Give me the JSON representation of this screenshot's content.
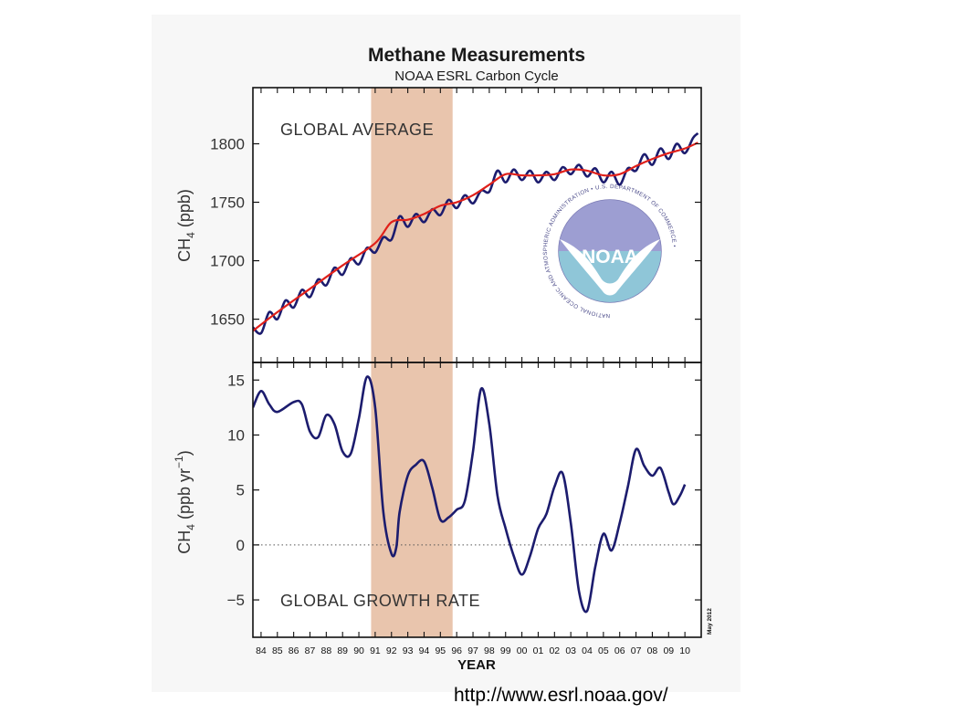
{
  "slide": {
    "source_url": "http://www.esrl.noaa.gov/"
  },
  "figure": {
    "title": "Methane Measurements",
    "subtitle": "NOAA ESRL Carbon Cycle",
    "date_stamp": "May 2012"
  },
  "logo": {
    "wordmark": "NOAA",
    "ring_text": "NATIONAL OCEANIC AND ATMOSPHERIC ADMINISTRATION • U.S. DEPARTMENT OF COMMERCE •"
  },
  "colors": {
    "series_line": "#1c1c6e",
    "trend_line": "#e0201a",
    "highlight_band": "#e9c5ad",
    "panel_background": "#ffffff",
    "figure_background": "#f7f7f7",
    "logo_sky": "#9d9ed2",
    "logo_sea": "#8fc6d8"
  },
  "chart_data": [
    {
      "type": "line",
      "panel": "top",
      "annotation": "GLOBAL AVERAGE",
      "ylabel_main": "CH",
      "ylabel_sub": "4",
      "ylabel_rest": " (ppb)",
      "xlabel": "",
      "ylim": [
        1613,
        1848
      ],
      "xlim": [
        1983.5,
        2011.0
      ],
      "yticks": [
        1650,
        1700,
        1750,
        1800
      ],
      "ytick_labels": [
        "1650",
        "1700",
        "1750",
        "1800"
      ],
      "grid": false,
      "highlight_band": [
        1990.75,
        1995.75
      ],
      "series": [
        {
          "role": "monthly",
          "x": [
            1983.5,
            1984.0,
            1984.5,
            1985.0,
            1985.5,
            1986.0,
            1986.5,
            1987.0,
            1987.5,
            1988.0,
            1988.5,
            1989.0,
            1989.5,
            1990.0,
            1990.5,
            1991.0,
            1991.5,
            1992.0,
            1992.5,
            1993.0,
            1993.5,
            1994.0,
            1994.5,
            1995.0,
            1995.5,
            1996.0,
            1996.5,
            1997.0,
            1997.5,
            1998.0,
            1998.5,
            1999.0,
            1999.5,
            2000.0,
            2000.5,
            2001.0,
            2001.5,
            2002.0,
            2002.5,
            2003.0,
            2003.5,
            2004.0,
            2004.5,
            2005.0,
            2005.5,
            2006.0,
            2006.5,
            2007.0,
            2007.5,
            2008.0,
            2008.5,
            2009.0,
            2009.5,
            2010.0,
            2010.5,
            2010.8
          ],
          "y": [
            1643,
            1638,
            1656,
            1650,
            1666,
            1660,
            1675,
            1669,
            1684,
            1679,
            1694,
            1688,
            1702,
            1697,
            1711,
            1707,
            1720,
            1718,
            1738,
            1729,
            1740,
            1733,
            1744,
            1739,
            1752,
            1745,
            1756,
            1749,
            1760,
            1759,
            1777,
            1767,
            1778,
            1769,
            1777,
            1767,
            1776,
            1769,
            1780,
            1774,
            1782,
            1772,
            1779,
            1767,
            1776,
            1765,
            1779,
            1777,
            1791,
            1782,
            1796,
            1787,
            1800,
            1792,
            1805,
            1809
          ]
        },
        {
          "role": "trend",
          "x": [
            1983.5,
            1985.0,
            1987.0,
            1989.0,
            1991.0,
            1992.0,
            1993.0,
            1994.0,
            1995.0,
            1996.0,
            1997.0,
            1998.0,
            1999.0,
            2000.0,
            2001.0,
            2002.0,
            2003.0,
            2004.0,
            2005.0,
            2006.0,
            2007.0,
            2008.0,
            2009.0,
            2010.0,
            2010.8
          ],
          "y": [
            1640,
            1656,
            1676,
            1696,
            1715,
            1733,
            1735,
            1740,
            1747,
            1750,
            1756,
            1765,
            1774,
            1773,
            1773,
            1774,
            1778,
            1777,
            1773,
            1774,
            1781,
            1787,
            1792,
            1796,
            1801
          ]
        }
      ]
    },
    {
      "type": "line",
      "panel": "bottom",
      "annotation": "GLOBAL GROWTH RATE",
      "ylabel_main": "CH",
      "ylabel_sub": "4",
      "ylabel_rest": " (ppb yr",
      "ylabel_exp": "−1",
      "ylabel_close": ")",
      "xlabel": "YEAR",
      "ylim": [
        -8.4,
        16.6
      ],
      "xlim": [
        1983.5,
        2011.0
      ],
      "yticks": [
        -5,
        0,
        5,
        10,
        15
      ],
      "ytick_labels": [
        "−5",
        "0",
        "5",
        "10",
        "15"
      ],
      "xticks": [
        1984,
        1985,
        1986,
        1987,
        1988,
        1989,
        1990,
        1991,
        1992,
        1993,
        1994,
        1995,
        1996,
        1997,
        1998,
        1999,
        2000,
        2001,
        2002,
        2003,
        2004,
        2005,
        2006,
        2007,
        2008,
        2009,
        2010
      ],
      "xtick_labels": [
        "84",
        "85",
        "86",
        "87",
        "88",
        "89",
        "90",
        "91",
        "92",
        "93",
        "94",
        "95",
        "96",
        "97",
        "98",
        "99",
        "00",
        "01",
        "02",
        "03",
        "04",
        "05",
        "06",
        "07",
        "08",
        "09",
        "10"
      ],
      "zero_line": "dotted",
      "grid": false,
      "highlight_band": [
        1990.75,
        1995.75
      ],
      "series": [
        {
          "role": "growth_rate",
          "x": [
            1983.5,
            1984.0,
            1984.5,
            1985.0,
            1986.0,
            1986.5,
            1987.0,
            1987.5,
            1988.0,
            1988.5,
            1989.0,
            1989.5,
            1990.0,
            1990.5,
            1991.0,
            1991.5,
            1992.0,
            1992.3,
            1992.5,
            1993.0,
            1993.5,
            1994.0,
            1994.5,
            1995.0,
            1995.5,
            1996.0,
            1996.5,
            1997.0,
            1997.5,
            1998.0,
            1998.5,
            1999.0,
            1999.5,
            2000.0,
            2000.5,
            2001.0,
            2001.5,
            2002.0,
            2002.5,
            2003.0,
            2003.5,
            2004.0,
            2004.5,
            2005.0,
            2005.5,
            2006.0,
            2006.5,
            2007.0,
            2007.5,
            2008.0,
            2008.5,
            2009.0,
            2009.3,
            2009.7,
            2010.0
          ],
          "y": [
            12.5,
            14.0,
            12.8,
            12.1,
            13.0,
            12.8,
            10.3,
            9.8,
            11.8,
            11.0,
            8.5,
            8.3,
            11.5,
            15.3,
            12.5,
            3.0,
            -0.8,
            -0.2,
            3.0,
            6.3,
            7.3,
            7.6,
            5.2,
            2.3,
            2.5,
            3.2,
            4.0,
            8.5,
            14.2,
            11.0,
            4.5,
            1.5,
            -1.0,
            -2.7,
            -1.0,
            1.5,
            2.8,
            5.3,
            6.5,
            2.0,
            -4.2,
            -6.0,
            -2.0,
            1.0,
            -0.5,
            2.0,
            5.3,
            8.7,
            7.2,
            6.3,
            7.0,
            4.8,
            3.7,
            4.5,
            5.5
          ]
        }
      ]
    }
  ]
}
